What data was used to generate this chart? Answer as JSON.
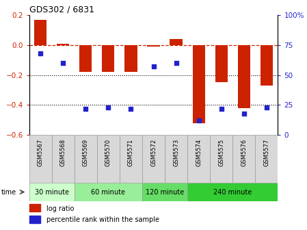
{
  "title": "GDS302 / 6831",
  "samples": [
    "GSM5567",
    "GSM5568",
    "GSM5569",
    "GSM5570",
    "GSM5571",
    "GSM5572",
    "GSM5573",
    "GSM5574",
    "GSM5575",
    "GSM5576",
    "GSM5577"
  ],
  "log_ratios": [
    0.17,
    0.01,
    -0.18,
    -0.18,
    -0.18,
    -0.01,
    0.04,
    -0.52,
    -0.25,
    -0.42,
    -0.27
  ],
  "percentile_ranks": [
    68,
    60,
    22,
    23,
    22,
    57,
    60,
    12,
    22,
    18,
    23
  ],
  "bar_color": "#cc2200",
  "dot_color": "#2222cc",
  "left_ylim": [
    -0.6,
    0.2
  ],
  "right_ylim": [
    0,
    100
  ],
  "left_yticks": [
    -0.6,
    -0.4,
    -0.2,
    0.0,
    0.2
  ],
  "right_yticks": [
    0,
    25,
    50,
    75,
    100
  ],
  "groups": [
    {
      "label": "30 minute",
      "start": 0,
      "end": 2
    },
    {
      "label": "60 minute",
      "start": 2,
      "end": 5
    },
    {
      "label": "120 minute",
      "start": 5,
      "end": 7
    },
    {
      "label": "240 minute",
      "start": 7,
      "end": 11
    }
  ],
  "group_colors": [
    "#ccffcc",
    "#99ee99",
    "#66dd66",
    "#33cc33"
  ],
  "time_label": "time",
  "legend_entries": [
    "log ratio",
    "percentile rank within the sample"
  ],
  "hline_color": "#cc2200",
  "dotline_color": "#000000",
  "header_bg": "#d8d8d8"
}
